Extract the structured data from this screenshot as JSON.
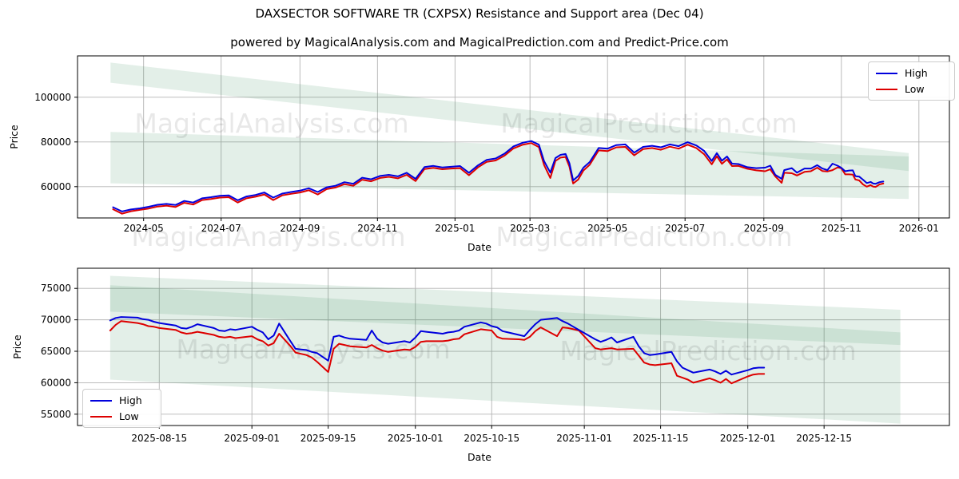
{
  "title": "DAXSECTOR SOFTWARE TR (CXPSX) Resistance and Support area (Dec 04)",
  "subtitle": "powered by MagicalAnalysis.com and MagicalPrediction.com and Predict-Price.com",
  "watermarks": [
    "MagicalAnalysis.com",
    "MagicalPrediction.com"
  ],
  "colors": {
    "high": "#0000dd",
    "low": "#dd0000",
    "band": "#3a915f",
    "grid": "#b3b3b3",
    "spine": "#000000",
    "watermark": "#000000"
  },
  "chart_data": [
    {
      "type": "line",
      "name": "full-history",
      "xlabel": "Date",
      "ylabel": "Price",
      "grid": true,
      "legend_position": "upper right",
      "x_ticks": [
        "2024-05",
        "2024-07",
        "2024-09",
        "2024-11",
        "2025-01",
        "2025-03",
        "2025-05",
        "2025-07",
        "2025-09",
        "2025-11",
        "2026-01"
      ],
      "y_ticks": [
        60000,
        80000,
        100000
      ],
      "xlim": [
        "2024-03-10",
        "2026-01-25"
      ],
      "ylim": [
        46000,
        118500
      ],
      "dates": [
        "2024-04-07",
        "2024-04-14",
        "2024-04-21",
        "2024-04-28",
        "2024-05-05",
        "2024-05-12",
        "2024-05-19",
        "2024-05-26",
        "2024-06-02",
        "2024-06-09",
        "2024-06-16",
        "2024-06-23",
        "2024-06-30",
        "2024-07-07",
        "2024-07-14",
        "2024-07-21",
        "2024-07-28",
        "2024-08-04",
        "2024-08-11",
        "2024-08-18",
        "2024-08-25",
        "2024-09-01",
        "2024-09-08",
        "2024-09-15",
        "2024-09-22",
        "2024-09-29",
        "2024-10-06",
        "2024-10-13",
        "2024-10-20",
        "2024-10-27",
        "2024-11-03",
        "2024-11-10",
        "2024-11-17",
        "2024-11-24",
        "2024-12-01",
        "2024-12-08",
        "2024-12-15",
        "2024-12-22",
        "2024-12-29",
        "2025-01-05",
        "2025-01-12",
        "2025-01-19",
        "2025-01-26",
        "2025-02-02",
        "2025-02-09",
        "2025-02-16",
        "2025-02-23",
        "2025-03-02",
        "2025-03-08",
        "2025-03-12",
        "2025-03-17",
        "2025-03-21",
        "2025-03-25",
        "2025-03-29",
        "2025-04-01",
        "2025-04-04",
        "2025-04-08",
        "2025-04-12",
        "2025-04-17",
        "2025-04-24",
        "2025-05-01",
        "2025-05-08",
        "2025-05-15",
        "2025-05-22",
        "2025-05-29",
        "2025-06-05",
        "2025-06-12",
        "2025-06-19",
        "2025-06-26",
        "2025-07-03",
        "2025-07-10",
        "2025-07-16",
        "2025-07-22",
        "2025-07-26",
        "2025-07-30",
        "2025-08-03",
        "2025-08-07",
        "2025-08-12",
        "2025-08-19",
        "2025-08-26",
        "2025-09-02",
        "2025-09-06",
        "2025-09-10",
        "2025-09-15",
        "2025-09-17",
        "2025-09-23",
        "2025-09-27",
        "2025-10-03",
        "2025-10-08",
        "2025-10-13",
        "2025-10-17",
        "2025-10-21",
        "2025-10-25",
        "2025-10-29",
        "2025-11-01",
        "2025-11-04",
        "2025-11-07",
        "2025-11-10",
        "2025-11-12",
        "2025-11-15",
        "2025-11-18",
        "2025-11-21",
        "2025-11-24",
        "2025-11-26",
        "2025-11-28",
        "2025-12-01",
        "2025-12-04"
      ],
      "series": [
        {
          "name": "High",
          "values": [
            50800,
            48900,
            49800,
            50300,
            51000,
            51900,
            52300,
            51800,
            53600,
            52900,
            54800,
            55300,
            55900,
            56100,
            53900,
            55600,
            56300,
            57400,
            55100,
            56900,
            57600,
            58200,
            59300,
            57600,
            59700,
            60400,
            62000,
            61300,
            64000,
            63300,
            64800,
            65300,
            64600,
            66200,
            63500,
            68800,
            69300,
            68600,
            68900,
            69200,
            66200,
            69500,
            72000,
            72600,
            74800,
            78000,
            79600,
            80400,
            78800,
            71500,
            66300,
            72800,
            74200,
            74600,
            70500,
            62800,
            64800,
            68500,
            71000,
            77300,
            77000,
            78600,
            78900,
            75200,
            77800,
            78300,
            77600,
            78900,
            78100,
            79900,
            78400,
            76000,
            71500,
            75000,
            71600,
            73500,
            70300,
            70100,
            68700,
            68300,
            68500,
            69400,
            65300,
            63500,
            67400,
            68300,
            66300,
            68100,
            68100,
            69600,
            68100,
            67400,
            70300,
            69400,
            68400,
            66900,
            67200,
            67300,
            64700,
            64500,
            63100,
            61600,
            62100,
            61400,
            61300,
            62000,
            62300
          ]
        },
        {
          "name": "Low",
          "values": [
            49900,
            47900,
            49000,
            49600,
            50200,
            51100,
            51500,
            50900,
            52800,
            52000,
            54000,
            54500,
            55100,
            55300,
            52900,
            54800,
            55500,
            56500,
            54000,
            56100,
            56800,
            57400,
            58400,
            56500,
            58900,
            59600,
            61100,
            60400,
            63100,
            62400,
            63900,
            64400,
            63700,
            65300,
            62500,
            67900,
            68400,
            67800,
            68100,
            68300,
            65100,
            68600,
            71100,
            71700,
            73900,
            77100,
            78700,
            79500,
            77700,
            69800,
            63900,
            71500,
            73000,
            73300,
            69000,
            61400,
            63200,
            67200,
            69800,
            76200,
            75900,
            77600,
            77800,
            74000,
            76800,
            77300,
            76500,
            77900,
            77000,
            78800,
            77200,
            74500,
            70000,
            73600,
            70200,
            72200,
            69200,
            69300,
            68000,
            67300,
            66900,
            67800,
            64600,
            61700,
            66200,
            66000,
            65000,
            66600,
            66900,
            68500,
            67000,
            66800,
            67400,
            68600,
            68200,
            65500,
            65500,
            65400,
            63200,
            62800,
            61000,
            60000,
            60700,
            60000,
            59900,
            61000,
            61400
          ]
        }
      ],
      "bands": [
        {
          "name": "resistance-band",
          "x": [
            "2024-04-05",
            "2025-12-24"
          ],
          "top": [
            115500,
            75000
          ],
          "bottom": [
            106500,
            67000
          ]
        },
        {
          "name": "support-band",
          "x": [
            "2024-04-05",
            "2025-12-24"
          ],
          "top": [
            84500,
            73500
          ],
          "bottom": [
            61500,
            54500
          ]
        }
      ]
    },
    {
      "type": "line",
      "name": "recent-zoom",
      "xlabel": "Date",
      "ylabel": "Price",
      "grid": true,
      "legend_position": "lower left",
      "x_ticks": [
        "2025-08-15",
        "2025-09-01",
        "2025-09-15",
        "2025-10-01",
        "2025-10-15",
        "2025-11-01",
        "2025-11-15",
        "2025-12-01",
        "2025-12-15"
      ],
      "y_ticks": [
        55000,
        60000,
        65000,
        70000,
        75000
      ],
      "xlim": [
        "2025-07-31",
        "2026-01-07"
      ],
      "ylim": [
        53200,
        78200
      ],
      "dates": [
        "2025-08-06",
        "2025-08-07",
        "2025-08-08",
        "2025-08-11",
        "2025-08-12",
        "2025-08-13",
        "2025-08-14",
        "2025-08-15",
        "2025-08-18",
        "2025-08-19",
        "2025-08-20",
        "2025-08-21",
        "2025-08-22",
        "2025-08-25",
        "2025-08-26",
        "2025-08-27",
        "2025-08-28",
        "2025-08-29",
        "2025-09-01",
        "2025-09-02",
        "2025-09-03",
        "2025-09-04",
        "2025-09-05",
        "2025-09-06",
        "2025-09-08",
        "2025-09-09",
        "2025-09-10",
        "2025-09-11",
        "2025-09-12",
        "2025-09-13",
        "2025-09-15",
        "2025-09-16",
        "2025-09-17",
        "2025-09-18",
        "2025-09-19",
        "2025-09-22",
        "2025-09-23",
        "2025-09-24",
        "2025-09-25",
        "2025-09-26",
        "2025-09-29",
        "2025-09-30",
        "2025-10-01",
        "2025-10-02",
        "2025-10-03",
        "2025-10-06",
        "2025-10-07",
        "2025-10-08",
        "2025-10-09",
        "2025-10-10",
        "2025-10-13",
        "2025-10-14",
        "2025-10-15",
        "2025-10-16",
        "2025-10-17",
        "2025-10-20",
        "2025-10-21",
        "2025-10-22",
        "2025-10-23",
        "2025-10-24",
        "2025-10-27",
        "2025-10-28",
        "2025-10-29",
        "2025-10-30",
        "2025-10-31",
        "2025-11-03",
        "2025-11-04",
        "2025-11-05",
        "2025-11-06",
        "2025-11-07",
        "2025-11-10",
        "2025-11-11",
        "2025-11-12",
        "2025-11-13",
        "2025-11-14",
        "2025-11-17",
        "2025-11-18",
        "2025-11-19",
        "2025-11-20",
        "2025-11-21",
        "2025-11-24",
        "2025-11-25",
        "2025-11-26",
        "2025-11-27",
        "2025-11-28",
        "2025-12-01",
        "2025-12-02",
        "2025-12-03",
        "2025-12-04"
      ],
      "series": [
        {
          "name": "High",
          "values": [
            69900,
            70300,
            70450,
            70350,
            70100,
            70000,
            69700,
            69500,
            69100,
            68700,
            68600,
            68900,
            69300,
            68700,
            68300,
            68200,
            68500,
            68400,
            68900,
            68400,
            68000,
            66900,
            67500,
            69400,
            66700,
            65400,
            65300,
            65200,
            64900,
            64700,
            63500,
            67300,
            67500,
            67200,
            67000,
            66800,
            68300,
            67000,
            66400,
            66200,
            66600,
            66400,
            67200,
            68200,
            68100,
            67800,
            68000,
            68100,
            68300,
            68900,
            69600,
            69400,
            69000,
            68800,
            68200,
            67600,
            67400,
            68400,
            69300,
            70000,
            70300,
            69800,
            69400,
            68900,
            68400,
            66900,
            66500,
            66800,
            67200,
            66400,
            67300,
            65800,
            64700,
            64400,
            64500,
            64900,
            63400,
            62400,
            62000,
            61600,
            62100,
            61800,
            61400,
            61900,
            61300,
            62000,
            62300,
            62400,
            62400
          ]
        },
        {
          "name": "Low",
          "values": [
            68300,
            69200,
            69800,
            69500,
            69300,
            69000,
            68900,
            68700,
            68400,
            68000,
            67800,
            67900,
            68100,
            67600,
            67300,
            67200,
            67300,
            67100,
            67400,
            66900,
            66600,
            65900,
            66300,
            67800,
            65900,
            64800,
            64600,
            64400,
            64000,
            63300,
            61700,
            65400,
            66200,
            66000,
            65800,
            65600,
            66000,
            65500,
            65100,
            64900,
            65300,
            65200,
            65700,
            66500,
            66600,
            66600,
            66700,
            66900,
            67000,
            67700,
            68500,
            68400,
            68300,
            67300,
            67000,
            66900,
            66800,
            67300,
            68200,
            68800,
            67400,
            68800,
            68700,
            68500,
            68300,
            65500,
            65300,
            65400,
            65500,
            65300,
            65400,
            64300,
            63200,
            62900,
            62800,
            63100,
            61100,
            60800,
            60500,
            60000,
            60700,
            60400,
            60000,
            60600,
            59900,
            61000,
            61300,
            61400,
            61400
          ]
        }
      ],
      "bands": [
        {
          "name": "resistance-band",
          "x": [
            "2025-08-06",
            "2025-12-29"
          ],
          "top": [
            77000,
            71600
          ],
          "bottom": [
            71300,
            66000
          ]
        },
        {
          "name": "support-band",
          "x": [
            "2025-08-06",
            "2025-12-29"
          ],
          "top": [
            75500,
            68000
          ],
          "bottom": [
            60500,
            53500
          ]
        }
      ]
    }
  ]
}
